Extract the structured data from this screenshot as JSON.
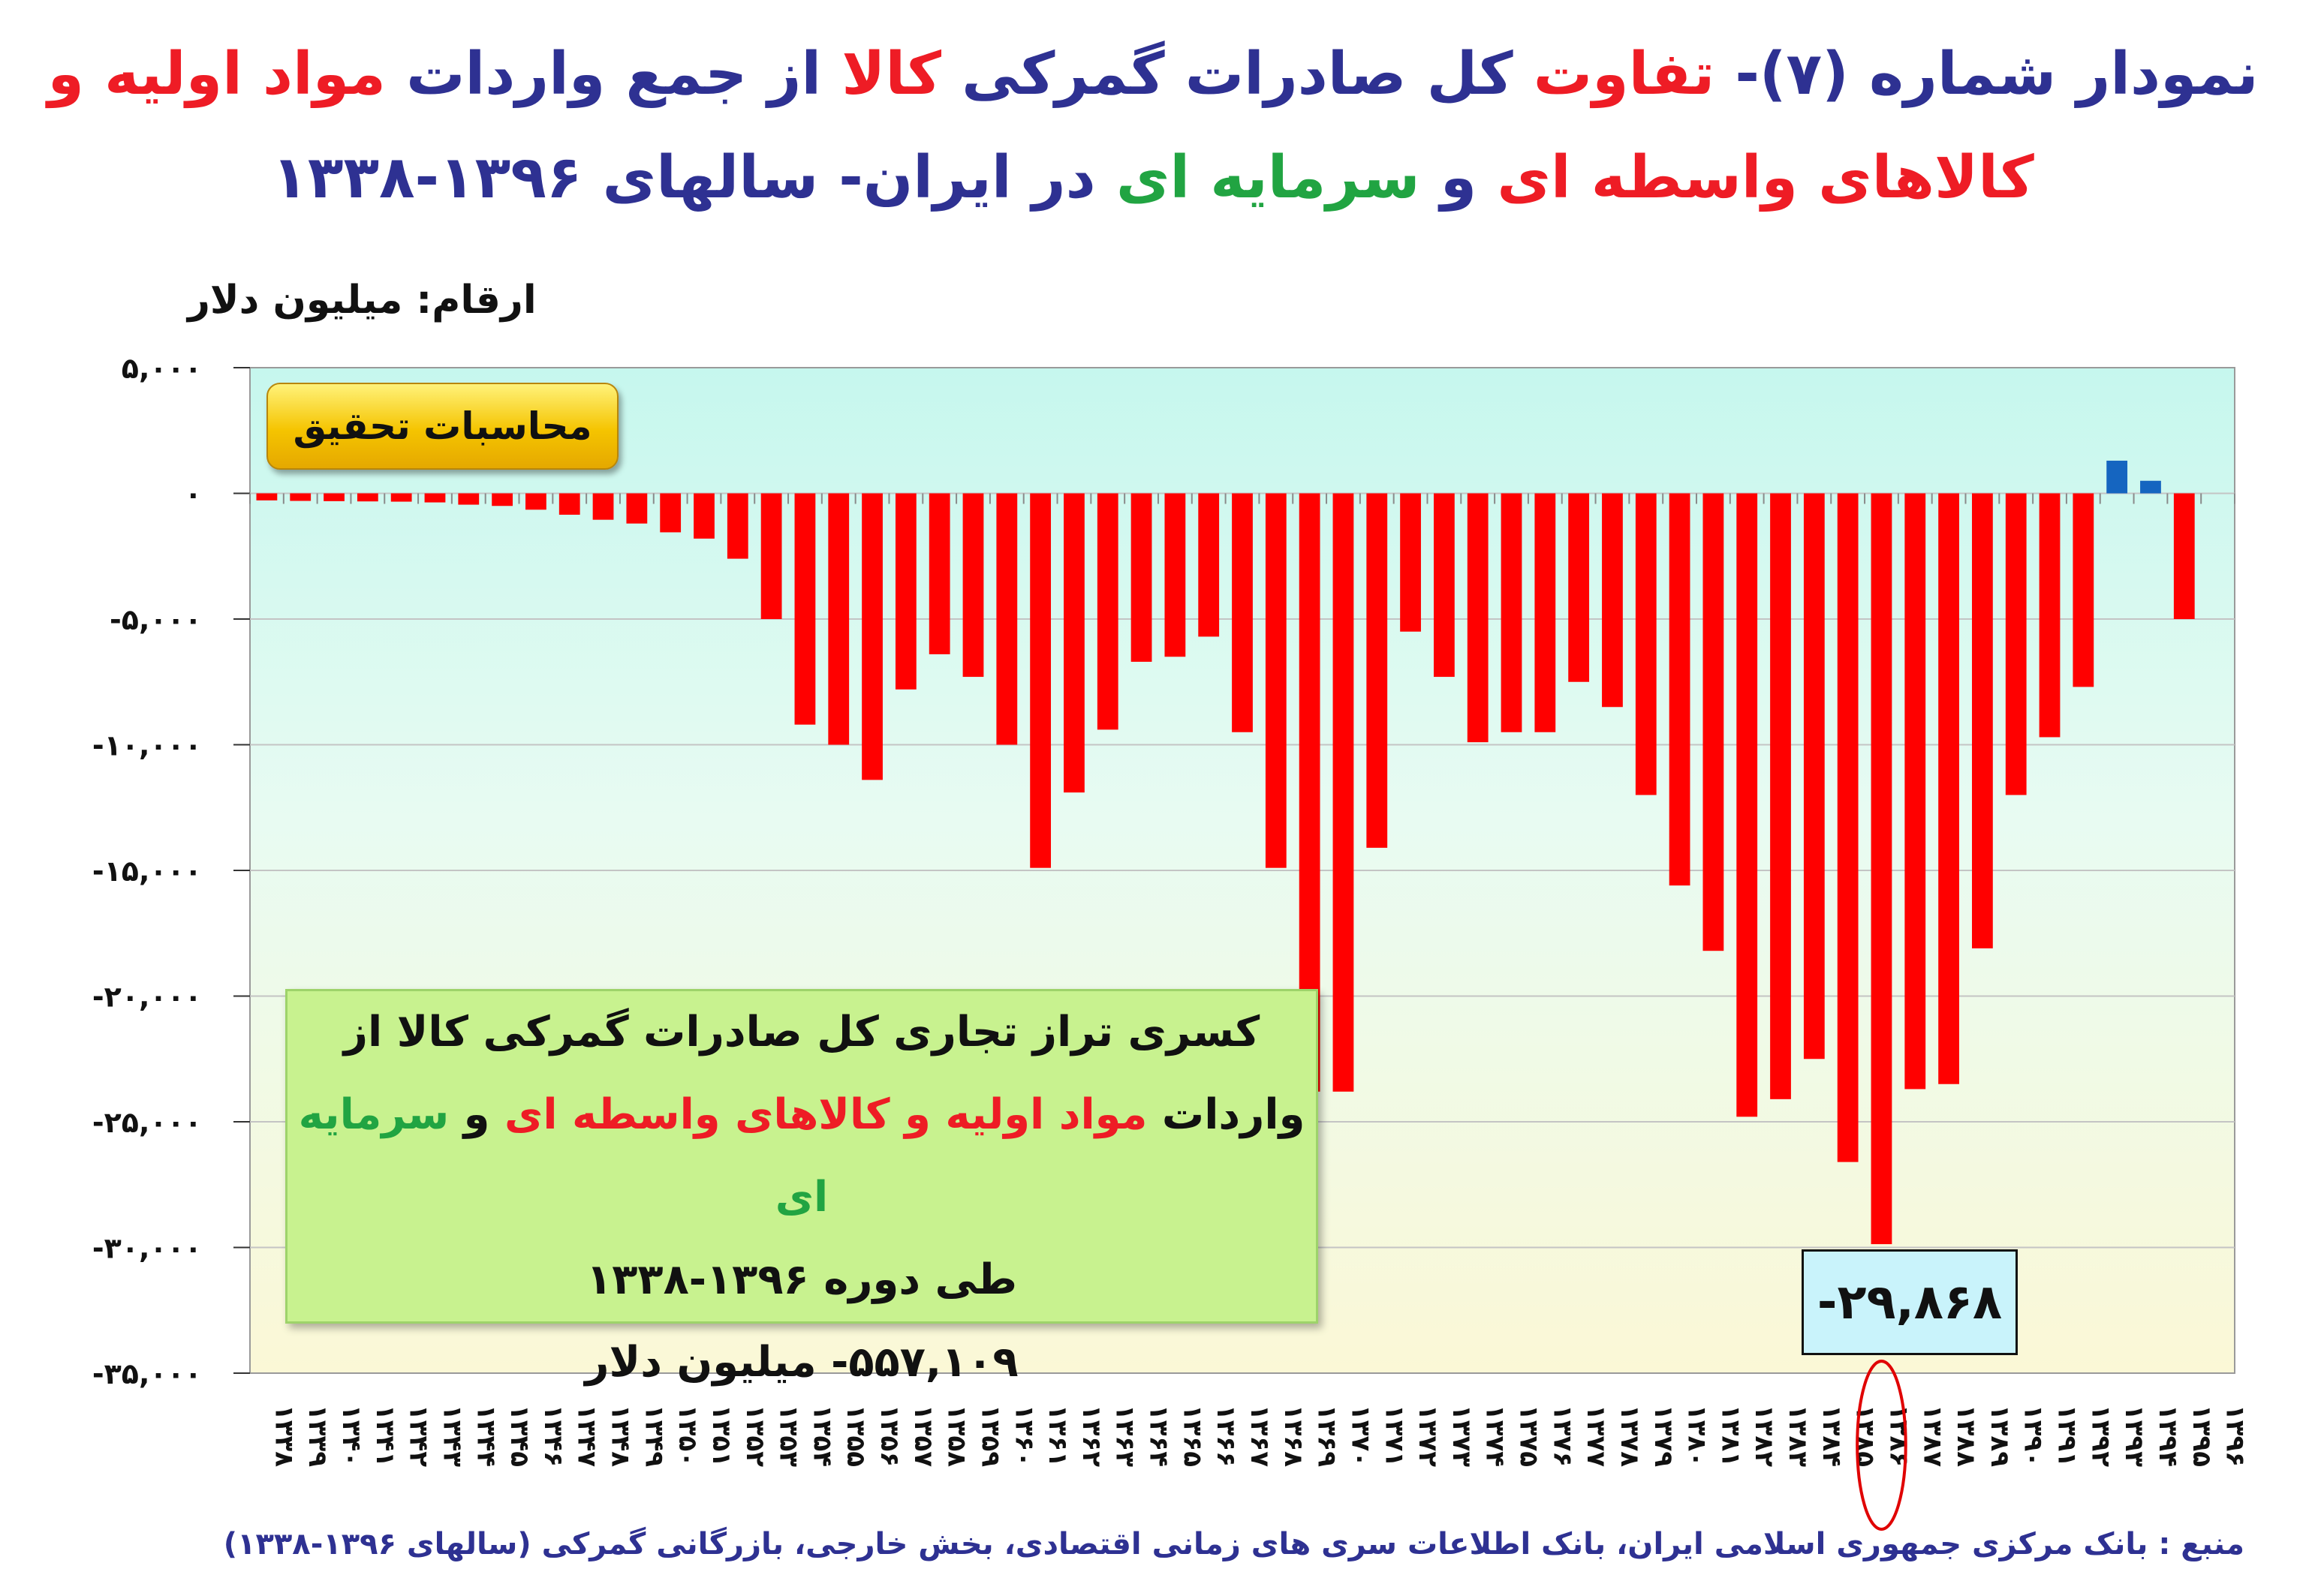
{
  "title": {
    "p1": "نمودار شماره (۷)- ",
    "p2": "تفاوت",
    "p3": " کل صادرات گمرکی ",
    "p4": "کالا",
    "p5": " از جمع واردات ",
    "p6": "مواد اولیه و",
    "p7": "کالاهای واسطه ای",
    "p8": " و ",
    "p9": "سرمایه ای",
    "p10": " در ایران- سالهای ۱۳۹۶-۱۳۳۸"
  },
  "unit_label": "ارقام: میلیون دلار",
  "calc_badge": "محاسبات تحقیق",
  "summary": {
    "line1": "کسری تراز تجاری کل صادرات گمرکی کالا از",
    "line2_a": "واردات ",
    "line2_b": "مواد اولیه و کالاهای واسطه ای",
    "line2_c": " و ",
    "line2_d": "سرمایه ای",
    "line3": "طی دوره ۱۳۹۶-۱۳۳۸",
    "line4": "۵۵۷,۱۰۹- میلیون دلار"
  },
  "min_callout": "-۲۹,۸۶۸",
  "source": "منبع : بانک مرکزی جمهوری اسلامی ایران، بانک اطلاعات سری های زمانی اقتصادی، بخش خارجی، بازرگانی گمرکی (سالهای ۱۳۹۶-۱۳۳۸)",
  "colors": {
    "negative_bar": "#ff0000",
    "positive_bar": "#1565c0",
    "plot_bg_top": "#c6f7ee",
    "plot_bg_bottom": "#fbf8d6",
    "title_blue": "#2e3192",
    "highlight_ring": "#e00000"
  },
  "chart_data": {
    "type": "bar",
    "ylim": [
      -35000,
      5000
    ],
    "yticks": [
      {
        "value": 5000,
        "label": "۵,۰۰۰"
      },
      {
        "value": 0,
        "label": "۰"
      },
      {
        "value": -5000,
        "label": "-۵,۰۰۰"
      },
      {
        "value": -10000,
        "label": "-۱۰,۰۰۰"
      },
      {
        "value": -15000,
        "label": "-۱۵,۰۰۰"
      },
      {
        "value": -20000,
        "label": "-۲۰,۰۰۰"
      },
      {
        "value": -25000,
        "label": "-۲۵,۰۰۰"
      },
      {
        "value": -30000,
        "label": "-۳۰,۰۰۰"
      },
      {
        "value": -35000,
        "label": "-۳۵,۰۰۰"
      }
    ],
    "grid": true,
    "categories": [
      "۱۳۳۸",
      "۱۳۳۹",
      "۱۳۴۰",
      "۱۳۴۱",
      "۱۳۴۲",
      "۱۳۴۳",
      "۱۳۴۴",
      "۱۳۴۵",
      "۱۳۴۶",
      "۱۳۴۷",
      "۱۳۴۸",
      "۱۳۴۹",
      "۱۳۵۰",
      "۱۳۵۱",
      "۱۳۵۲",
      "۱۳۵۳",
      "۱۳۵۴",
      "۱۳۵۵",
      "۱۳۵۶",
      "۱۳۵۷",
      "۱۳۵۸",
      "۱۳۵۹",
      "۱۳۶۰",
      "۱۳۶۱",
      "۱۳۶۲",
      "۱۳۶۳",
      "۱۳۶۴",
      "۱۳۶۵",
      "۱۳۶۶",
      "۱۳۶۷",
      "۱۳۶۸",
      "۱۳۶۹",
      "۱۳۷۰",
      "۱۳۷۱",
      "۱۳۷۲",
      "۱۳۷۳",
      "۱۳۷۴",
      "۱۳۷۵",
      "۱۳۷۶",
      "۱۳۷۷",
      "۱۳۷۸",
      "۱۳۷۹",
      "۱۳۸۰",
      "۱۳۸۱",
      "۱۳۸۲",
      "۱۳۸۳",
      "۱۳۸۴",
      "۱۳۸۵",
      "۱۳۸۶",
      "۱۳۸۷",
      "۱۳۸۸",
      "۱۳۸۹",
      "۱۳۹۰",
      "۱۳۹۱",
      "۱۳۹۲",
      "۱۳۹۳",
      "۱۳۹۴",
      "۱۳۹۵",
      "۱۳۹۶"
    ],
    "values": [
      -280,
      -300,
      -310,
      -320,
      -330,
      -360,
      -450,
      -500,
      -650,
      -850,
      -1050,
      -1200,
      -1550,
      -1800,
      -2600,
      -5000,
      -9200,
      -10000,
      -11400,
      -7800,
      -6400,
      -7300,
      -10000,
      -14900,
      -11900,
      -9400,
      -6700,
      -6500,
      -5700,
      -9500,
      -14900,
      -23800,
      -23800,
      -14100,
      -5500,
      -7300,
      -9900,
      -9500,
      -9500,
      -7500,
      -8500,
      -12000,
      -15600,
      -18200,
      -24800,
      -24100,
      -22500,
      -26600,
      -29868,
      -23700,
      -23500,
      -18100,
      -12000,
      -9700,
      -7700,
      1300,
      500,
      -5000,
      null
    ],
    "highlight_category": "۱۳۸۶"
  }
}
